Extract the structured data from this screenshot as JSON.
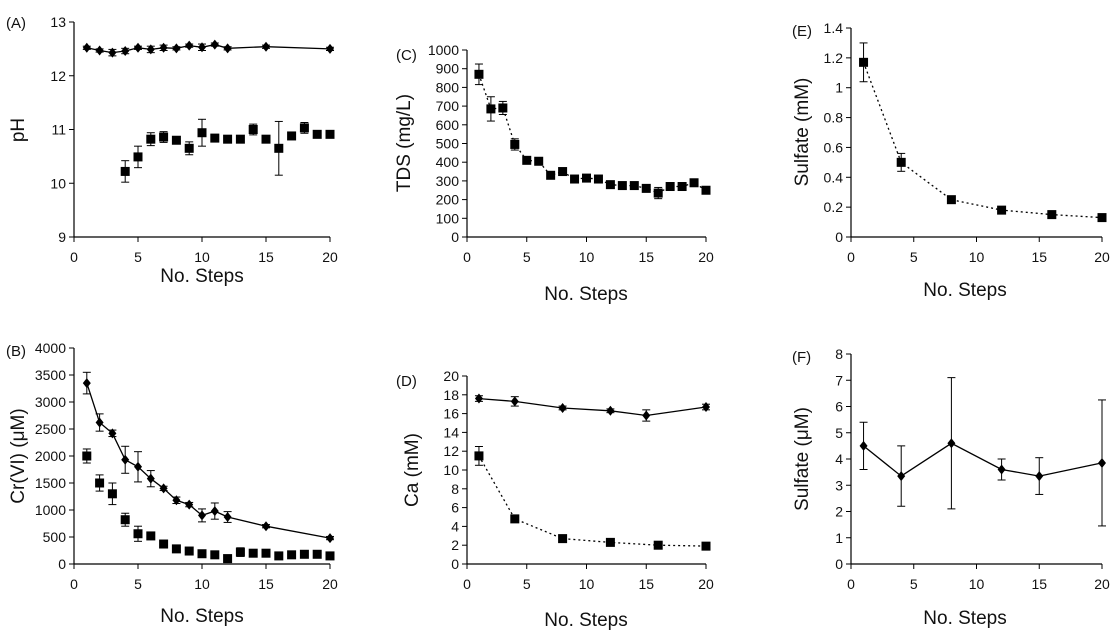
{
  "chart_data": [
    {
      "panel_label": "(A)",
      "type": "scatter",
      "xlabel": "No. Steps",
      "ylabel": "pH",
      "xlim": [
        0,
        20
      ],
      "ylim": [
        9,
        13
      ],
      "xticks": [
        0,
        5,
        10,
        15,
        20
      ],
      "yticks": [
        9,
        10,
        11,
        12,
        13
      ],
      "series": [
        {
          "marker": "diamond",
          "line": "solid",
          "color": "#000000",
          "x": [
            1,
            2,
            3,
            4,
            5,
            6,
            7,
            8,
            9,
            10,
            11,
            12,
            15,
            20
          ],
          "y": [
            12.52,
            12.47,
            12.43,
            12.46,
            12.52,
            12.49,
            12.52,
            12.51,
            12.56,
            12.53,
            12.58,
            12.51,
            12.54,
            12.5
          ],
          "err": [
            0.03,
            0.03,
            0.06,
            0.05,
            0.03,
            0.06,
            0.05,
            0.03,
            0.03,
            0.06,
            0.03,
            0.03,
            0.03,
            0.03
          ]
        },
        {
          "marker": "square",
          "line": "none",
          "color": "#000000",
          "x": [
            4,
            5,
            6,
            7,
            8,
            9,
            10,
            11,
            12,
            13,
            14,
            15,
            16,
            17,
            18,
            19,
            20
          ],
          "y": [
            10.22,
            10.49,
            10.82,
            10.86,
            10.8,
            10.65,
            10.94,
            10.84,
            10.82,
            10.82,
            11.0,
            10.82,
            10.65,
            10.88,
            11.03,
            10.91,
            10.91
          ],
          "err": [
            0.2,
            0.2,
            0.12,
            0.1,
            0.07,
            0.12,
            0.25,
            0.05,
            0.05,
            0.05,
            0.1,
            0.05,
            0.5,
            0.05,
            0.1,
            0.05,
            0.05
          ]
        }
      ]
    },
    {
      "panel_label": "(C)",
      "type": "scatter",
      "xlabel": "No. Steps",
      "ylabel": "TDS (mg/L)",
      "xlim": [
        0,
        20
      ],
      "ylim": [
        0,
        1000
      ],
      "xticks": [
        0,
        5,
        10,
        15,
        20
      ],
      "yticks": [
        0,
        100,
        200,
        300,
        400,
        500,
        600,
        700,
        800,
        900,
        1000
      ],
      "series": [
        {
          "marker": "square",
          "line": "dotted",
          "color": "#000000",
          "x": [
            1,
            2,
            3,
            4,
            5,
            6,
            7,
            8,
            9,
            10,
            11,
            12,
            13,
            14,
            15,
            16,
            17,
            18,
            19,
            20
          ],
          "y": [
            870,
            685,
            690,
            495,
            410,
            405,
            330,
            350,
            310,
            315,
            310,
            280,
            275,
            275,
            260,
            235,
            270,
            270,
            290,
            250
          ],
          "err": [
            55,
            65,
            35,
            30,
            10,
            10,
            10,
            10,
            10,
            10,
            10,
            10,
            10,
            10,
            10,
            30,
            10,
            10,
            10,
            10
          ]
        }
      ]
    },
    {
      "panel_label": "(E)",
      "type": "scatter",
      "xlabel": "No. Steps",
      "ylabel": "Sulfate (mM)",
      "xlim": [
        0,
        20
      ],
      "ylim": [
        0,
        1.4
      ],
      "xticks": [
        0,
        5,
        10,
        15,
        20
      ],
      "yticks": [
        0,
        0.2,
        0.4,
        0.6,
        0.8,
        1,
        1.2,
        1.4
      ],
      "series": [
        {
          "marker": "square",
          "line": "dotted",
          "color": "#000000",
          "x": [
            1,
            4,
            8,
            12,
            16,
            20
          ],
          "y": [
            1.17,
            0.5,
            0.25,
            0.18,
            0.15,
            0.13
          ],
          "err": [
            0.13,
            0.06,
            0.01,
            0.01,
            0.01,
            0.01
          ]
        }
      ]
    },
    {
      "panel_label": "(B)",
      "type": "scatter",
      "xlabel": "No. Steps",
      "ylabel": "Cr(VI) (μM)",
      "xlim": [
        0,
        20
      ],
      "ylim": [
        0,
        4000
      ],
      "xticks": [
        0,
        5,
        10,
        15,
        20
      ],
      "yticks": [
        0,
        500,
        1000,
        1500,
        2000,
        2500,
        3000,
        3500,
        4000
      ],
      "series": [
        {
          "marker": "diamond",
          "line": "solid",
          "color": "#000000",
          "x": [
            1,
            2,
            3,
            4,
            5,
            6,
            7,
            8,
            9,
            10,
            11,
            12,
            15,
            20
          ],
          "y": [
            3350,
            2620,
            2420,
            1930,
            1800,
            1580,
            1400,
            1180,
            1100,
            900,
            980,
            870,
            700,
            480
          ],
          "err": [
            200,
            160,
            60,
            250,
            280,
            150,
            40,
            60,
            40,
            120,
            150,
            100,
            30,
            30
          ]
        },
        {
          "marker": "square",
          "line": "none",
          "color": "#000000",
          "x": [
            1,
            2,
            3,
            4,
            5,
            6,
            7,
            8,
            9,
            10,
            11,
            12,
            13,
            14,
            15,
            16,
            17,
            18,
            19,
            20
          ],
          "y": [
            2000,
            1500,
            1300,
            820,
            560,
            520,
            370,
            280,
            240,
            190,
            170,
            100,
            220,
            200,
            200,
            150,
            170,
            180,
            180,
            150
          ],
          "err": [
            130,
            150,
            200,
            120,
            140,
            40,
            40,
            40,
            40,
            40,
            40,
            40,
            80,
            40,
            40,
            40,
            40,
            40,
            40,
            40
          ]
        }
      ]
    },
    {
      "panel_label": "(D)",
      "type": "scatter",
      "xlabel": "No. Steps",
      "ylabel": "Ca (mM)",
      "xlim": [
        0,
        20
      ],
      "ylim": [
        0,
        20
      ],
      "xticks": [
        0,
        5,
        10,
        15,
        20
      ],
      "yticks": [
        0,
        2,
        4,
        6,
        8,
        10,
        12,
        14,
        16,
        18,
        20
      ],
      "series": [
        {
          "marker": "diamond",
          "line": "solid",
          "color": "#000000",
          "x": [
            1,
            4,
            8,
            12,
            15,
            20
          ],
          "y": [
            17.6,
            17.3,
            16.6,
            16.3,
            15.8,
            16.7
          ],
          "err": [
            0.3,
            0.5,
            0.2,
            0.2,
            0.6,
            0.3
          ]
        },
        {
          "marker": "square",
          "line": "dotted",
          "color": "#000000",
          "x": [
            1,
            4,
            8,
            12,
            16,
            20
          ],
          "y": [
            11.5,
            4.8,
            2.7,
            2.3,
            2.0,
            1.9
          ],
          "err": [
            1.0,
            0.2,
            0.2,
            0.2,
            0.1,
            0.1
          ]
        }
      ]
    },
    {
      "panel_label": "(F)",
      "type": "scatter",
      "xlabel": "No. Steps",
      "ylabel": "Sulfate (μM)",
      "xlim": [
        0,
        20
      ],
      "ylim": [
        0,
        8
      ],
      "xticks": [
        0,
        5,
        10,
        15,
        20
      ],
      "yticks": [
        0,
        1,
        2,
        3,
        4,
        5,
        6,
        7,
        8
      ],
      "series": [
        {
          "marker": "diamond",
          "line": "solid",
          "color": "#000000",
          "x": [
            1,
            4,
            8,
            12,
            15,
            20
          ],
          "y": [
            4.5,
            3.35,
            4.6,
            3.6,
            3.35,
            3.85
          ],
          "err": [
            0.9,
            1.15,
            2.5,
            0.4,
            0.7,
            2.4
          ]
        }
      ]
    }
  ]
}
